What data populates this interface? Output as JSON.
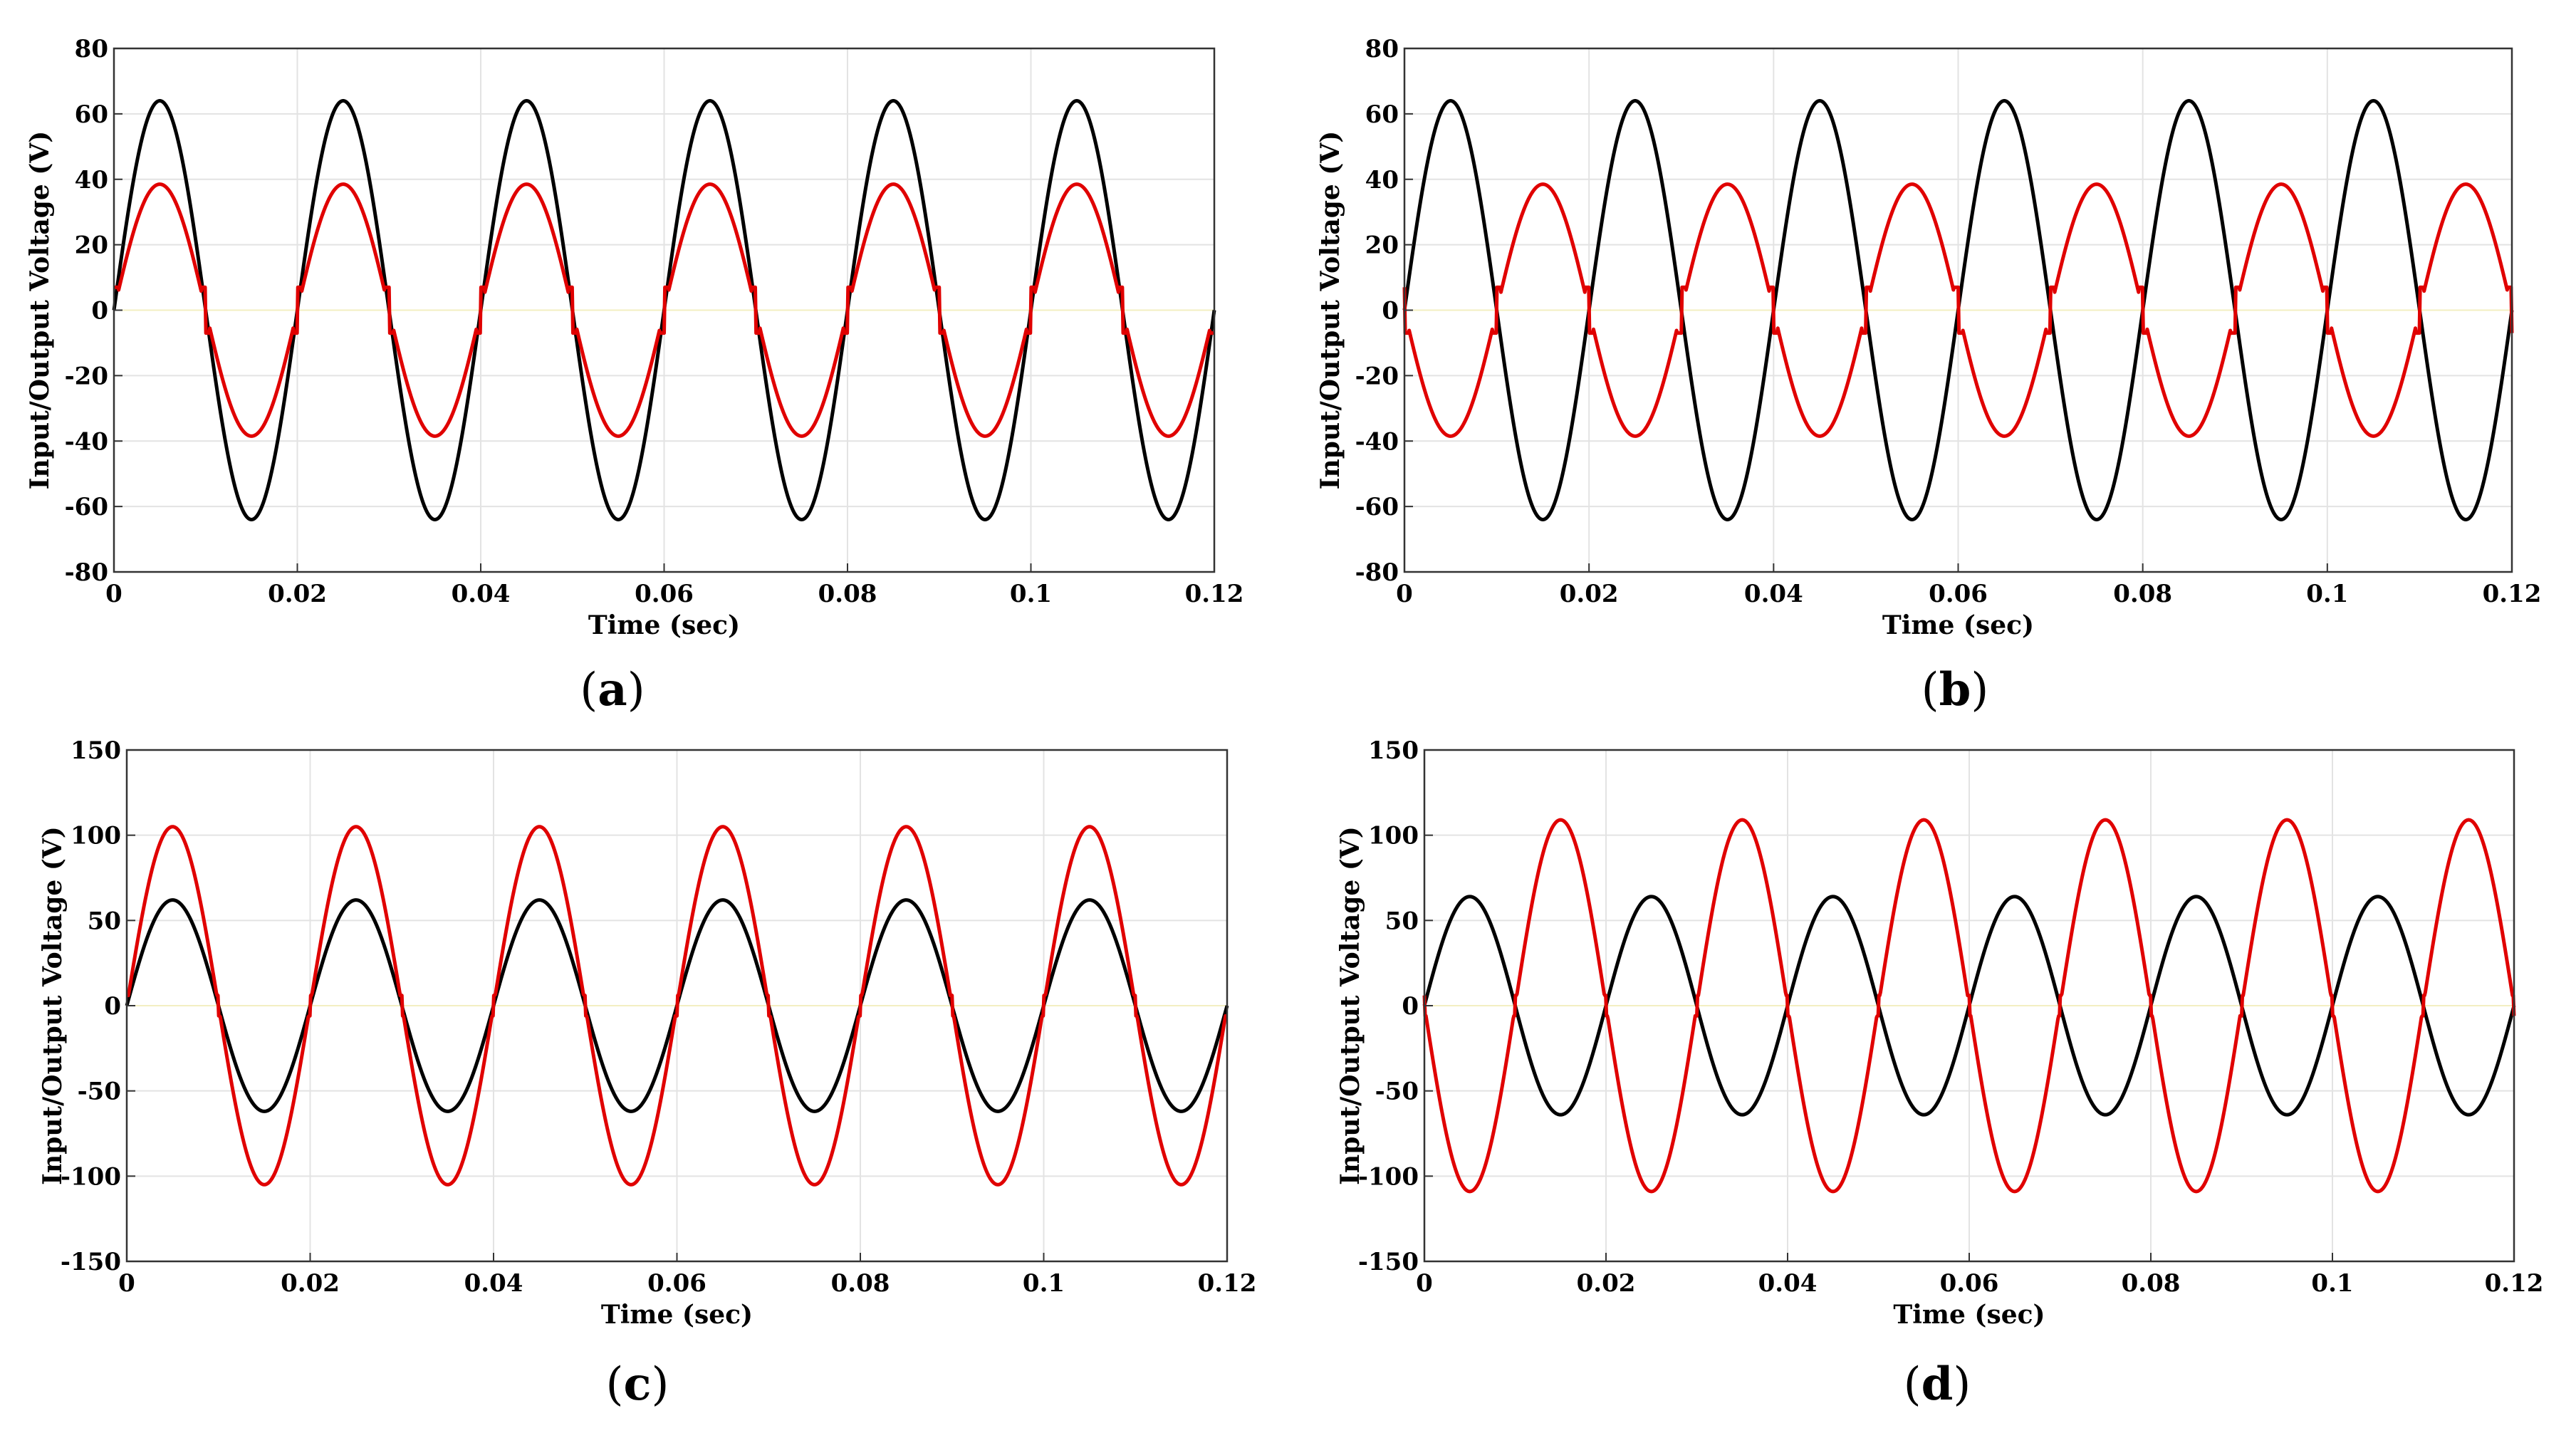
{
  "chart_data": [
    {
      "type": "line",
      "panel": "a",
      "caption_open": "(",
      "caption_letter": "a",
      "caption_close": ")",
      "xlabel": "Time (sec)",
      "ylabel": "Input/Output Voltage (V)",
      "xlim": [
        0,
        0.12
      ],
      "ylim": [
        -80,
        80
      ],
      "x_ticks": [
        0,
        0.02,
        0.04,
        0.06,
        0.08,
        0.1,
        0.12
      ],
      "x_tick_labels": [
        "0",
        "0.02",
        "0.04",
        "0.06",
        "0.08",
        "0.1",
        "0.12"
      ],
      "y_ticks": [
        -80,
        -60,
        -40,
        -20,
        0,
        20,
        40,
        60,
        80
      ],
      "y_tick_labels": [
        "-80",
        "-60",
        "-40",
        "-20",
        "0",
        "20",
        "40",
        "60",
        "80"
      ],
      "grid": true,
      "frequency_hz": 50,
      "series": [
        {
          "name": "Input voltage",
          "color": "#000000",
          "amplitude": 64,
          "phase_deg": 0,
          "shape": "sine"
        },
        {
          "name": "Output voltage",
          "color": "#e00000",
          "amplitude": 38.5,
          "phase_deg": 0,
          "shape": "notched-sine",
          "notch_level": 7
        }
      ]
    },
    {
      "type": "line",
      "panel": "b",
      "caption_open": "(",
      "caption_letter": "b",
      "caption_close": ")",
      "xlabel": "Time (sec)",
      "ylabel": "Input/Output Voltage (V)",
      "xlim": [
        0,
        0.12
      ],
      "ylim": [
        -80,
        80
      ],
      "x_ticks": [
        0,
        0.02,
        0.04,
        0.06,
        0.08,
        0.1,
        0.12
      ],
      "x_tick_labels": [
        "0",
        "0.02",
        "0.04",
        "0.06",
        "0.08",
        "0.1",
        "0.12"
      ],
      "y_ticks": [
        -80,
        -60,
        -40,
        -20,
        0,
        20,
        40,
        60,
        80
      ],
      "y_tick_labels": [
        "-80",
        "-60",
        "-40",
        "-20",
        "0",
        "20",
        "40",
        "60",
        "80"
      ],
      "grid": true,
      "frequency_hz": 50,
      "series": [
        {
          "name": "Input voltage",
          "color": "#000000",
          "amplitude": 64,
          "phase_deg": 0,
          "shape": "sine"
        },
        {
          "name": "Output voltage",
          "color": "#e00000",
          "amplitude": 38.5,
          "phase_deg": 180,
          "shape": "notched-sine",
          "notch_level": 7
        }
      ]
    },
    {
      "type": "line",
      "panel": "c",
      "caption_open": "(",
      "caption_letter": "c",
      "caption_close": ")",
      "xlabel": "Time (sec)",
      "ylabel": "Input/Output Voltage (V)",
      "xlim": [
        0,
        0.12
      ],
      "ylim": [
        -150,
        150
      ],
      "x_ticks": [
        0,
        0.02,
        0.04,
        0.06,
        0.08,
        0.1,
        0.12
      ],
      "x_tick_labels": [
        "0",
        "0.02",
        "0.04",
        "0.06",
        "0.08",
        "0.1",
        "0.12"
      ],
      "y_ticks": [
        -150,
        -100,
        -50,
        0,
        50,
        100,
        150
      ],
      "y_tick_labels": [
        "-150",
        "-100",
        "-50",
        "0",
        "50",
        "100",
        "150"
      ],
      "grid": true,
      "frequency_hz": 50,
      "series": [
        {
          "name": "Input voltage",
          "color": "#000000",
          "amplitude": 62,
          "phase_deg": 0,
          "shape": "sine"
        },
        {
          "name": "Output voltage",
          "color": "#e00000",
          "amplitude": 105,
          "phase_deg": 0,
          "shape": "notched-sine",
          "notch_level": 6
        }
      ]
    },
    {
      "type": "line",
      "panel": "d",
      "caption_open": "(",
      "caption_letter": "d",
      "caption_close": ")",
      "xlabel": "Time (sec)",
      "ylabel": "Input/Output Voltage (V)",
      "xlim": [
        0,
        0.12
      ],
      "ylim": [
        -150,
        150
      ],
      "x_ticks": [
        0,
        0.02,
        0.04,
        0.06,
        0.08,
        0.1,
        0.12
      ],
      "x_tick_labels": [
        "0",
        "0.02",
        "0.04",
        "0.06",
        "0.08",
        "0.1",
        "0.12"
      ],
      "y_ticks": [
        -150,
        -100,
        -50,
        0,
        50,
        100,
        150
      ],
      "y_tick_labels": [
        "-150",
        "-100",
        "-50",
        "0",
        "50",
        "100",
        "150"
      ],
      "grid": true,
      "frequency_hz": 50,
      "series": [
        {
          "name": "Input voltage",
          "color": "#000000",
          "amplitude": 64,
          "phase_deg": 0,
          "shape": "sine"
        },
        {
          "name": "Output voltage",
          "color": "#e00000",
          "amplitude": 109,
          "phase_deg": 180,
          "shape": "notched-sine",
          "notch_level": 6
        }
      ]
    }
  ]
}
